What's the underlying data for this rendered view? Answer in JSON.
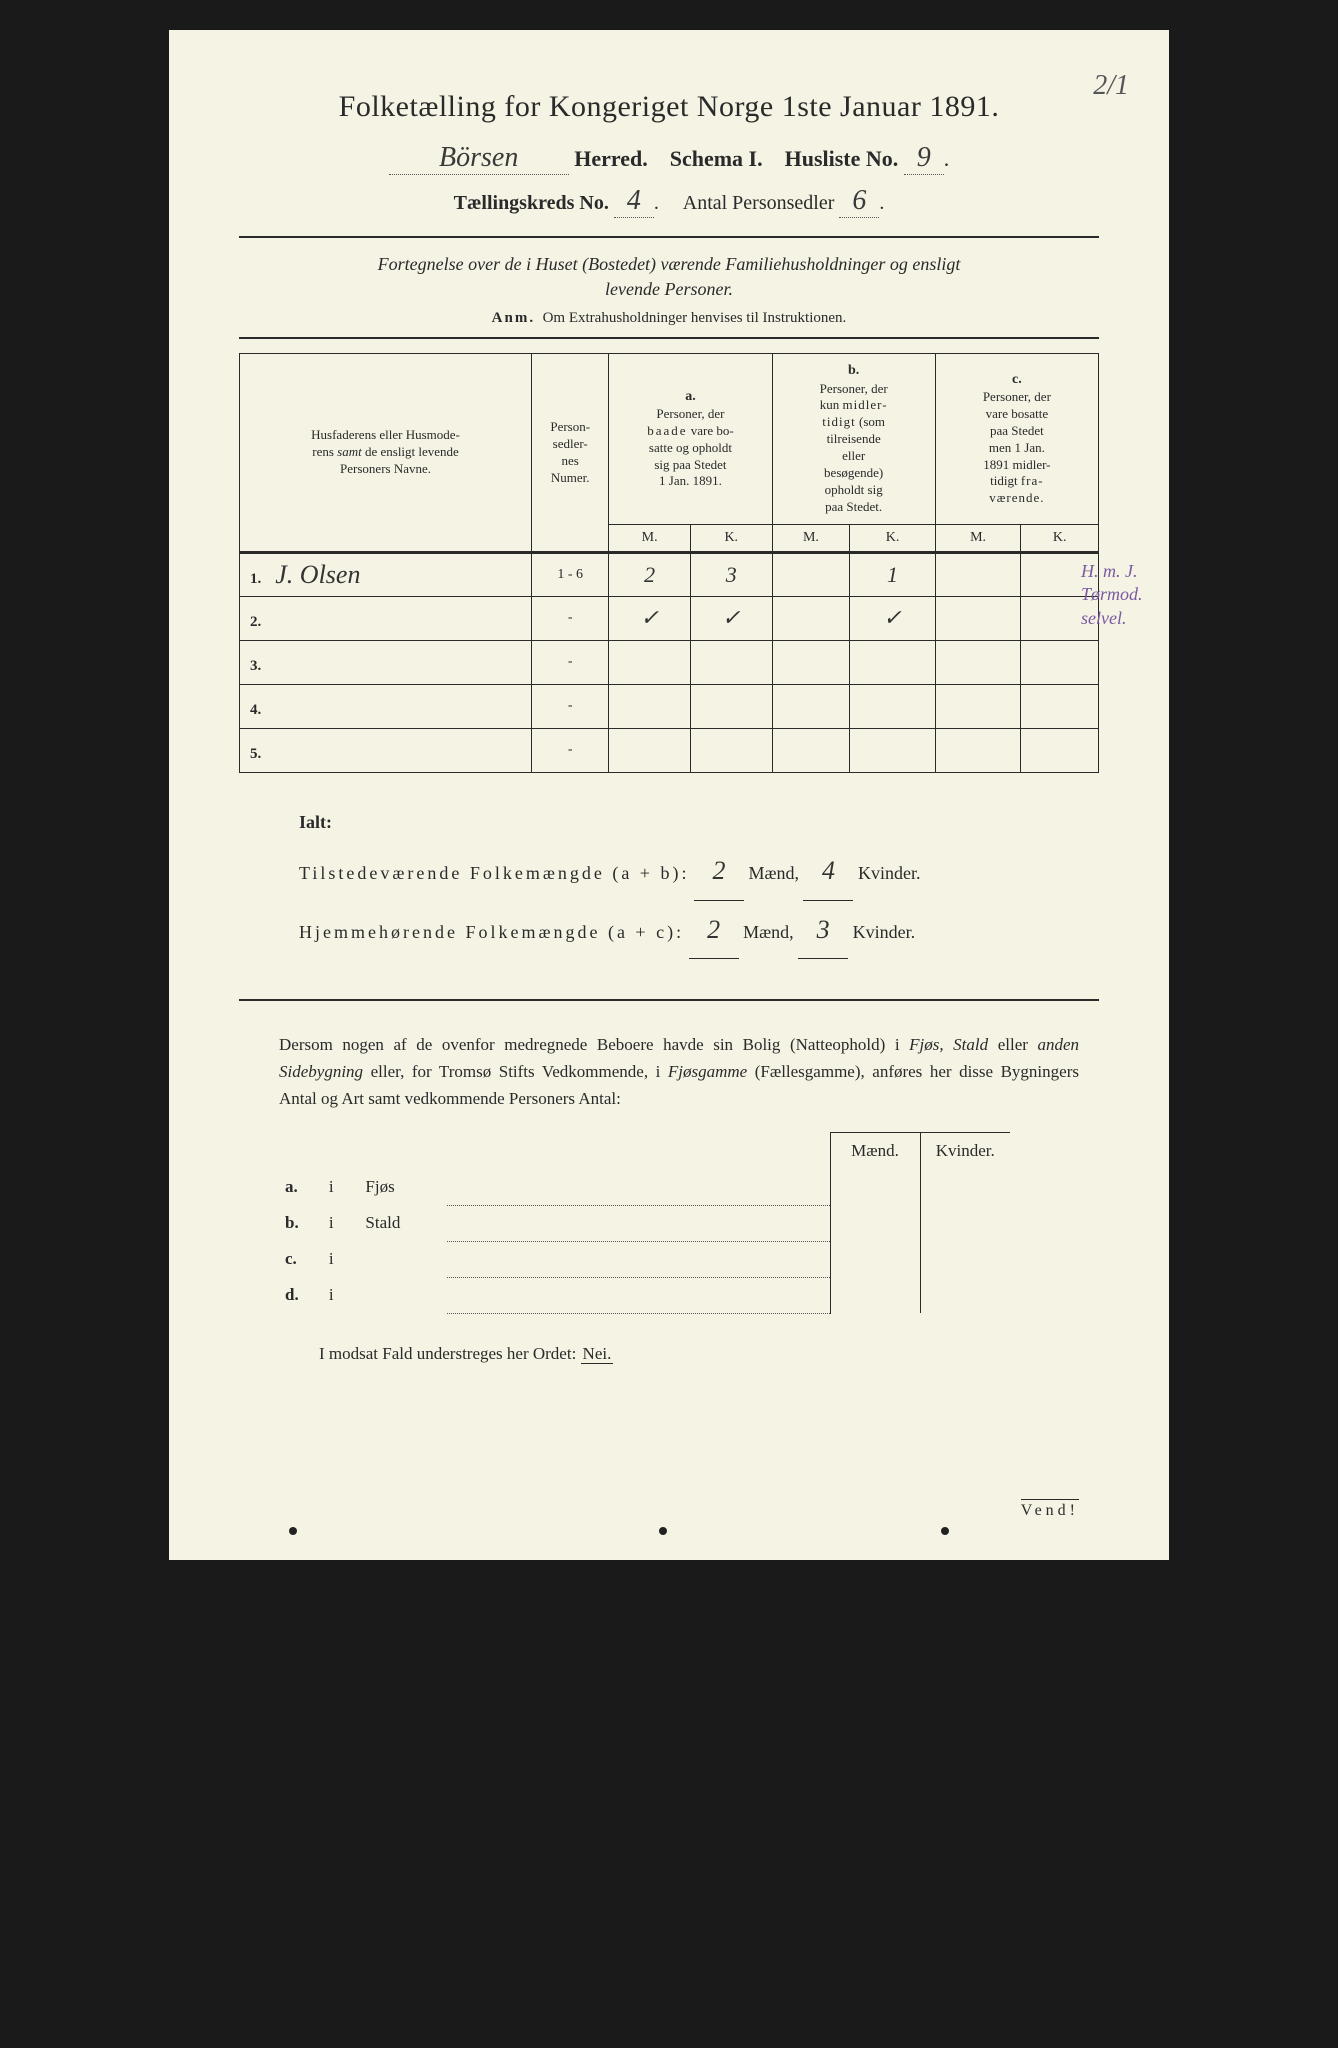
{
  "page_mark": "2/1",
  "title": "Folketælling for Kongeriget Norge 1ste Januar 1891.",
  "herred_name": "Börsen",
  "herred_label": "Herred.",
  "schema_label": "Schema I.",
  "husliste_label": "Husliste No.",
  "husliste_no": "9",
  "kreds_label": "Tællingskreds No.",
  "kreds_no": "4",
  "personsedler_label": "Antal Personsedler",
  "personsedler_count": "6",
  "section_desc_line1": "Fortegnelse over de i Huset (Bostedet) værende Familiehusholdninger og ensligt",
  "section_desc_line2": "levende Personer.",
  "anm_label": "Anm.",
  "anm_text": "Om Extrahusholdninger henvises til Instruktionen.",
  "headers": {
    "col1": "Husfaderens eller Husmoderens samt de ensligt levende Personers Navne.",
    "col2": "Personsedlernes Numer.",
    "a_label": "a.",
    "a_text": "Personer, der baade vare bosatte og opholdt sig paa Stedet 1 Jan. 1891.",
    "b_label": "b.",
    "b_text": "Personer, der kun midlertidigt (som tilreisende eller besøgende) opholdt sig paa Stedet.",
    "c_label": "c.",
    "c_text": "Personer, der vare bosatte paa Stedet men 1 Jan. 1891 midlertidigt fraværende.",
    "M": "M.",
    "K": "K."
  },
  "rows": [
    {
      "num": "1.",
      "name": "J. Olsen",
      "pnum": "1 - 6",
      "aM": "2",
      "aK": "3",
      "bM": "",
      "bK": "1",
      "cM": "",
      "cK": ""
    },
    {
      "num": "2.",
      "name": "",
      "pnum": "-",
      "aM": "✓",
      "aK": "✓",
      "bM": "",
      "bK": "✓",
      "cM": "",
      "cK": ""
    },
    {
      "num": "3.",
      "name": "",
      "pnum": "-",
      "aM": "",
      "aK": "",
      "bM": "",
      "bK": "",
      "cM": "",
      "cK": ""
    },
    {
      "num": "4.",
      "name": "",
      "pnum": "-",
      "aM": "",
      "aK": "",
      "bM": "",
      "bK": "",
      "cM": "",
      "cK": ""
    },
    {
      "num": "5.",
      "name": "",
      "pnum": "-",
      "aM": "",
      "aK": "",
      "bM": "",
      "bK": "",
      "cM": "",
      "cK": ""
    }
  ],
  "margin_note": "H. m. J. Tørmod. selvel.",
  "ialt": {
    "label": "Ialt:",
    "line1_label": "Tilstedeværende Folkemængde (a + b):",
    "line1_m": "2",
    "line1_k": "4",
    "line2_label": "Hjemmehørende Folkemængde (a + c):",
    "line2_m": "2",
    "line2_k": "3",
    "maend": "Mænd,",
    "kvinder": "Kvinder."
  },
  "paragraph": "Dersom nogen af de ovenfor medregnede Beboere havde sin Bolig (Natteophold) i Fjøs, Stald eller anden Sidebygning eller, for Tromsø Stifts Vedkommende, i Fjøsgamme (Fællesgamme), anføres her disse Bygningers Antal og Art samt vedkommende Personers Antal:",
  "bottom_table": {
    "maend": "Mænd.",
    "kvinder": "Kvinder.",
    "rows": [
      {
        "letter": "a.",
        "i": "i",
        "label": "Fjøs"
      },
      {
        "letter": "b.",
        "i": "i",
        "label": "Stald"
      },
      {
        "letter": "c.",
        "i": "i",
        "label": ""
      },
      {
        "letter": "d.",
        "i": "i",
        "label": ""
      }
    ]
  },
  "modsat_text": "I modsat Fald understreges her Ordet:",
  "nei": "Nei.",
  "vend": "Vend!"
}
